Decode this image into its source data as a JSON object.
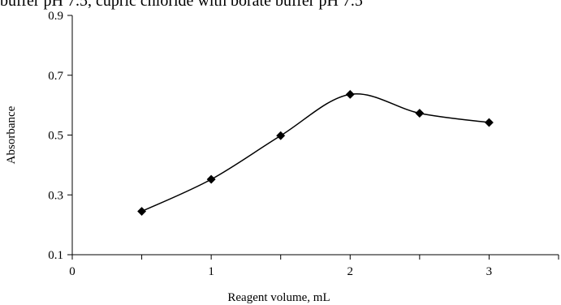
{
  "chart_data": {
    "type": "line",
    "title": "buffer pH 7.5, cupric chloride with borate buffer pH 7.5",
    "xlabel": "Reagent volume, mL",
    "ylabel": "Absorbance",
    "xlim": [
      0,
      3.5
    ],
    "ylim": [
      0.1,
      0.9
    ],
    "x_ticks": [
      "0",
      "1",
      "2",
      "3"
    ],
    "y_ticks": [
      "0.1",
      "0.3",
      "0.5",
      "0.7",
      "0.9"
    ],
    "grid": false,
    "legend": "none",
    "series": [
      {
        "marker": "diamond",
        "x": [
          0.5,
          1.0,
          1.5,
          2.0,
          2.5,
          3.0
        ],
        "y": [
          0.245,
          0.352,
          0.498,
          0.636,
          0.573,
          0.542
        ]
      }
    ],
    "colors": {
      "line": "#000000",
      "marker": "#000000"
    }
  }
}
